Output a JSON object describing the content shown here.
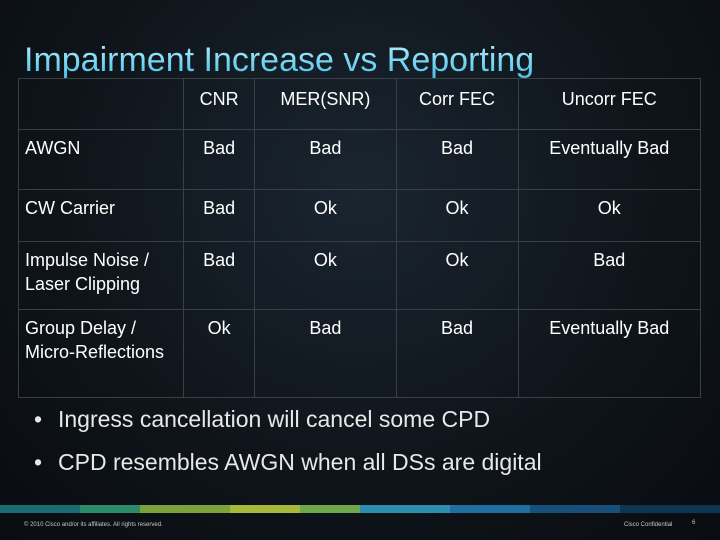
{
  "slide": {
    "title": "Impairment Increase vs Reporting",
    "table": {
      "headers": [
        "",
        "CNR",
        "MER(SNR)",
        "Corr FEC",
        "Uncorr FEC"
      ],
      "rows": [
        [
          "AWGN",
          "Bad",
          "Bad",
          "Bad",
          "Eventually Bad"
        ],
        [
          "CW Carrier",
          "Bad",
          "Ok",
          "Ok",
          "Ok"
        ],
        [
          "Impulse Noise / Laser Clipping",
          "Bad",
          "Ok",
          "Ok",
          "Bad"
        ],
        [
          "Group Delay / Micro-Reflections",
          "Ok",
          "Bad",
          "Bad",
          "Eventually Bad"
        ]
      ]
    },
    "bullets": [
      "Ingress cancellation will cancel some CPD",
      "CPD resembles AWGN when all DSs are digital"
    ],
    "bullet_glyph": "•",
    "footer": {
      "copyright": "© 2010 Cisco and/or its affiliates. All rights reserved.",
      "confidential": "Cisco Confidential",
      "page": "6"
    },
    "colors": {
      "title_gradient": [
        "#c5f3ff",
        "#43b7e0"
      ],
      "bar": [
        "#1a6b72",
        "#2a8a6a",
        "#7aa33a",
        "#a8b838",
        "#6fa84a",
        "#2d8fb0",
        "#1f6fa0",
        "#164f7a",
        "#0e3552"
      ]
    }
  }
}
